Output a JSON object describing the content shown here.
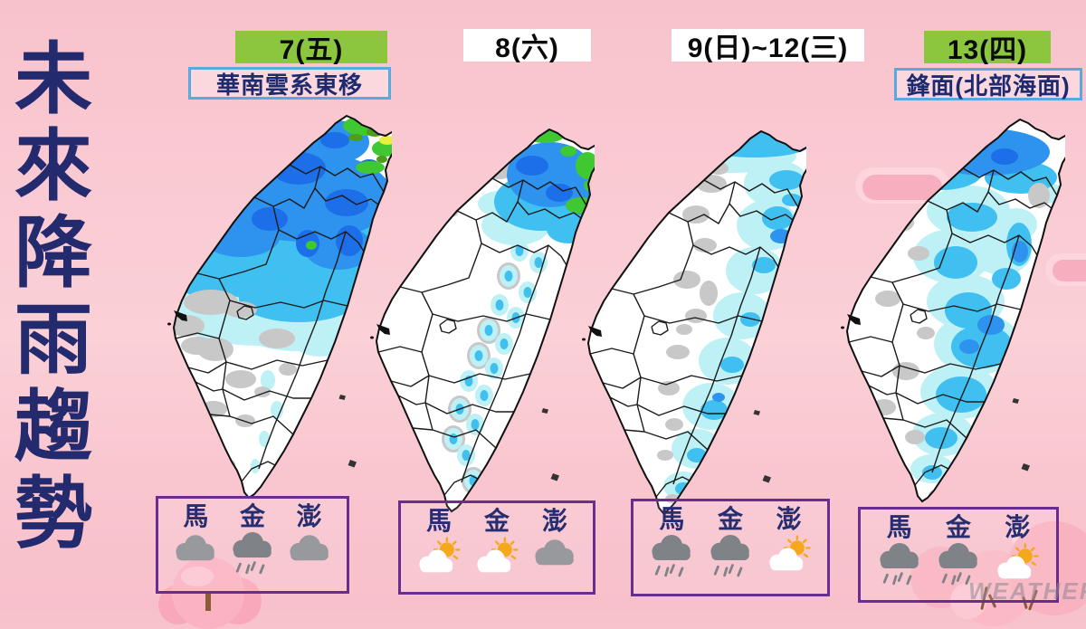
{
  "title": {
    "text": "未來降雨趨勢",
    "chars": [
      "未",
      "來",
      "降",
      "雨",
      "趨",
      "勢"
    ]
  },
  "watermark": "WEATHER",
  "colors": {
    "background_pink": "#F9C6CE",
    "title_navy": "#232B6E",
    "date_badge_green": "#8CC63E",
    "date_badge_white": "#FFFFFF",
    "annotation_border_blue": "#57A9DE",
    "panel_border_purple": "#692D90",
    "rain_trace_gray": "#C8C8C8",
    "rain_light_cyan": "#BDF1F5",
    "rain_cyan": "#3FC0F0",
    "rain_blue": "#2E93EE",
    "rain_dark_blue": "#1C6FE8",
    "rain_green": "#3FC832",
    "rain_yellow": "#E9EF3B"
  },
  "columns": [
    {
      "date_label": "7(五)",
      "date_badge": "green",
      "annotation": "華南雲系東移",
      "rain_pattern": "heavy-rain-north-half",
      "offshore": {
        "labels": [
          "馬",
          "金",
          "澎"
        ],
        "icons": [
          "cloudy",
          "rain",
          "cloudy"
        ]
      }
    },
    {
      "date_label": "8(六)",
      "date_badge": "white",
      "annotation": "",
      "rain_pattern": "northeast-corner-and-scattered-mountain-showers",
      "offshore": {
        "labels": [
          "馬",
          "金",
          "澎"
        ],
        "icons": [
          "partly-sunny",
          "partly-sunny",
          "cloudy"
        ]
      }
    },
    {
      "date_label": "9(日)~12(三)",
      "date_badge": "white",
      "annotation": "",
      "rain_pattern": "east-coast-band",
      "offshore": {
        "labels": [
          "馬",
          "金",
          "澎"
        ],
        "icons": [
          "rain",
          "rain",
          "partly-sunny"
        ]
      }
    },
    {
      "date_label": "13(四)",
      "date_badge": "green",
      "annotation": "鋒面(北部海面)",
      "rain_pattern": "north-and-central-east-band",
      "offshore": {
        "labels": [
          "馬",
          "金",
          "澎"
        ],
        "icons": [
          "rain",
          "rain",
          "partly-sunny"
        ]
      }
    }
  ]
}
